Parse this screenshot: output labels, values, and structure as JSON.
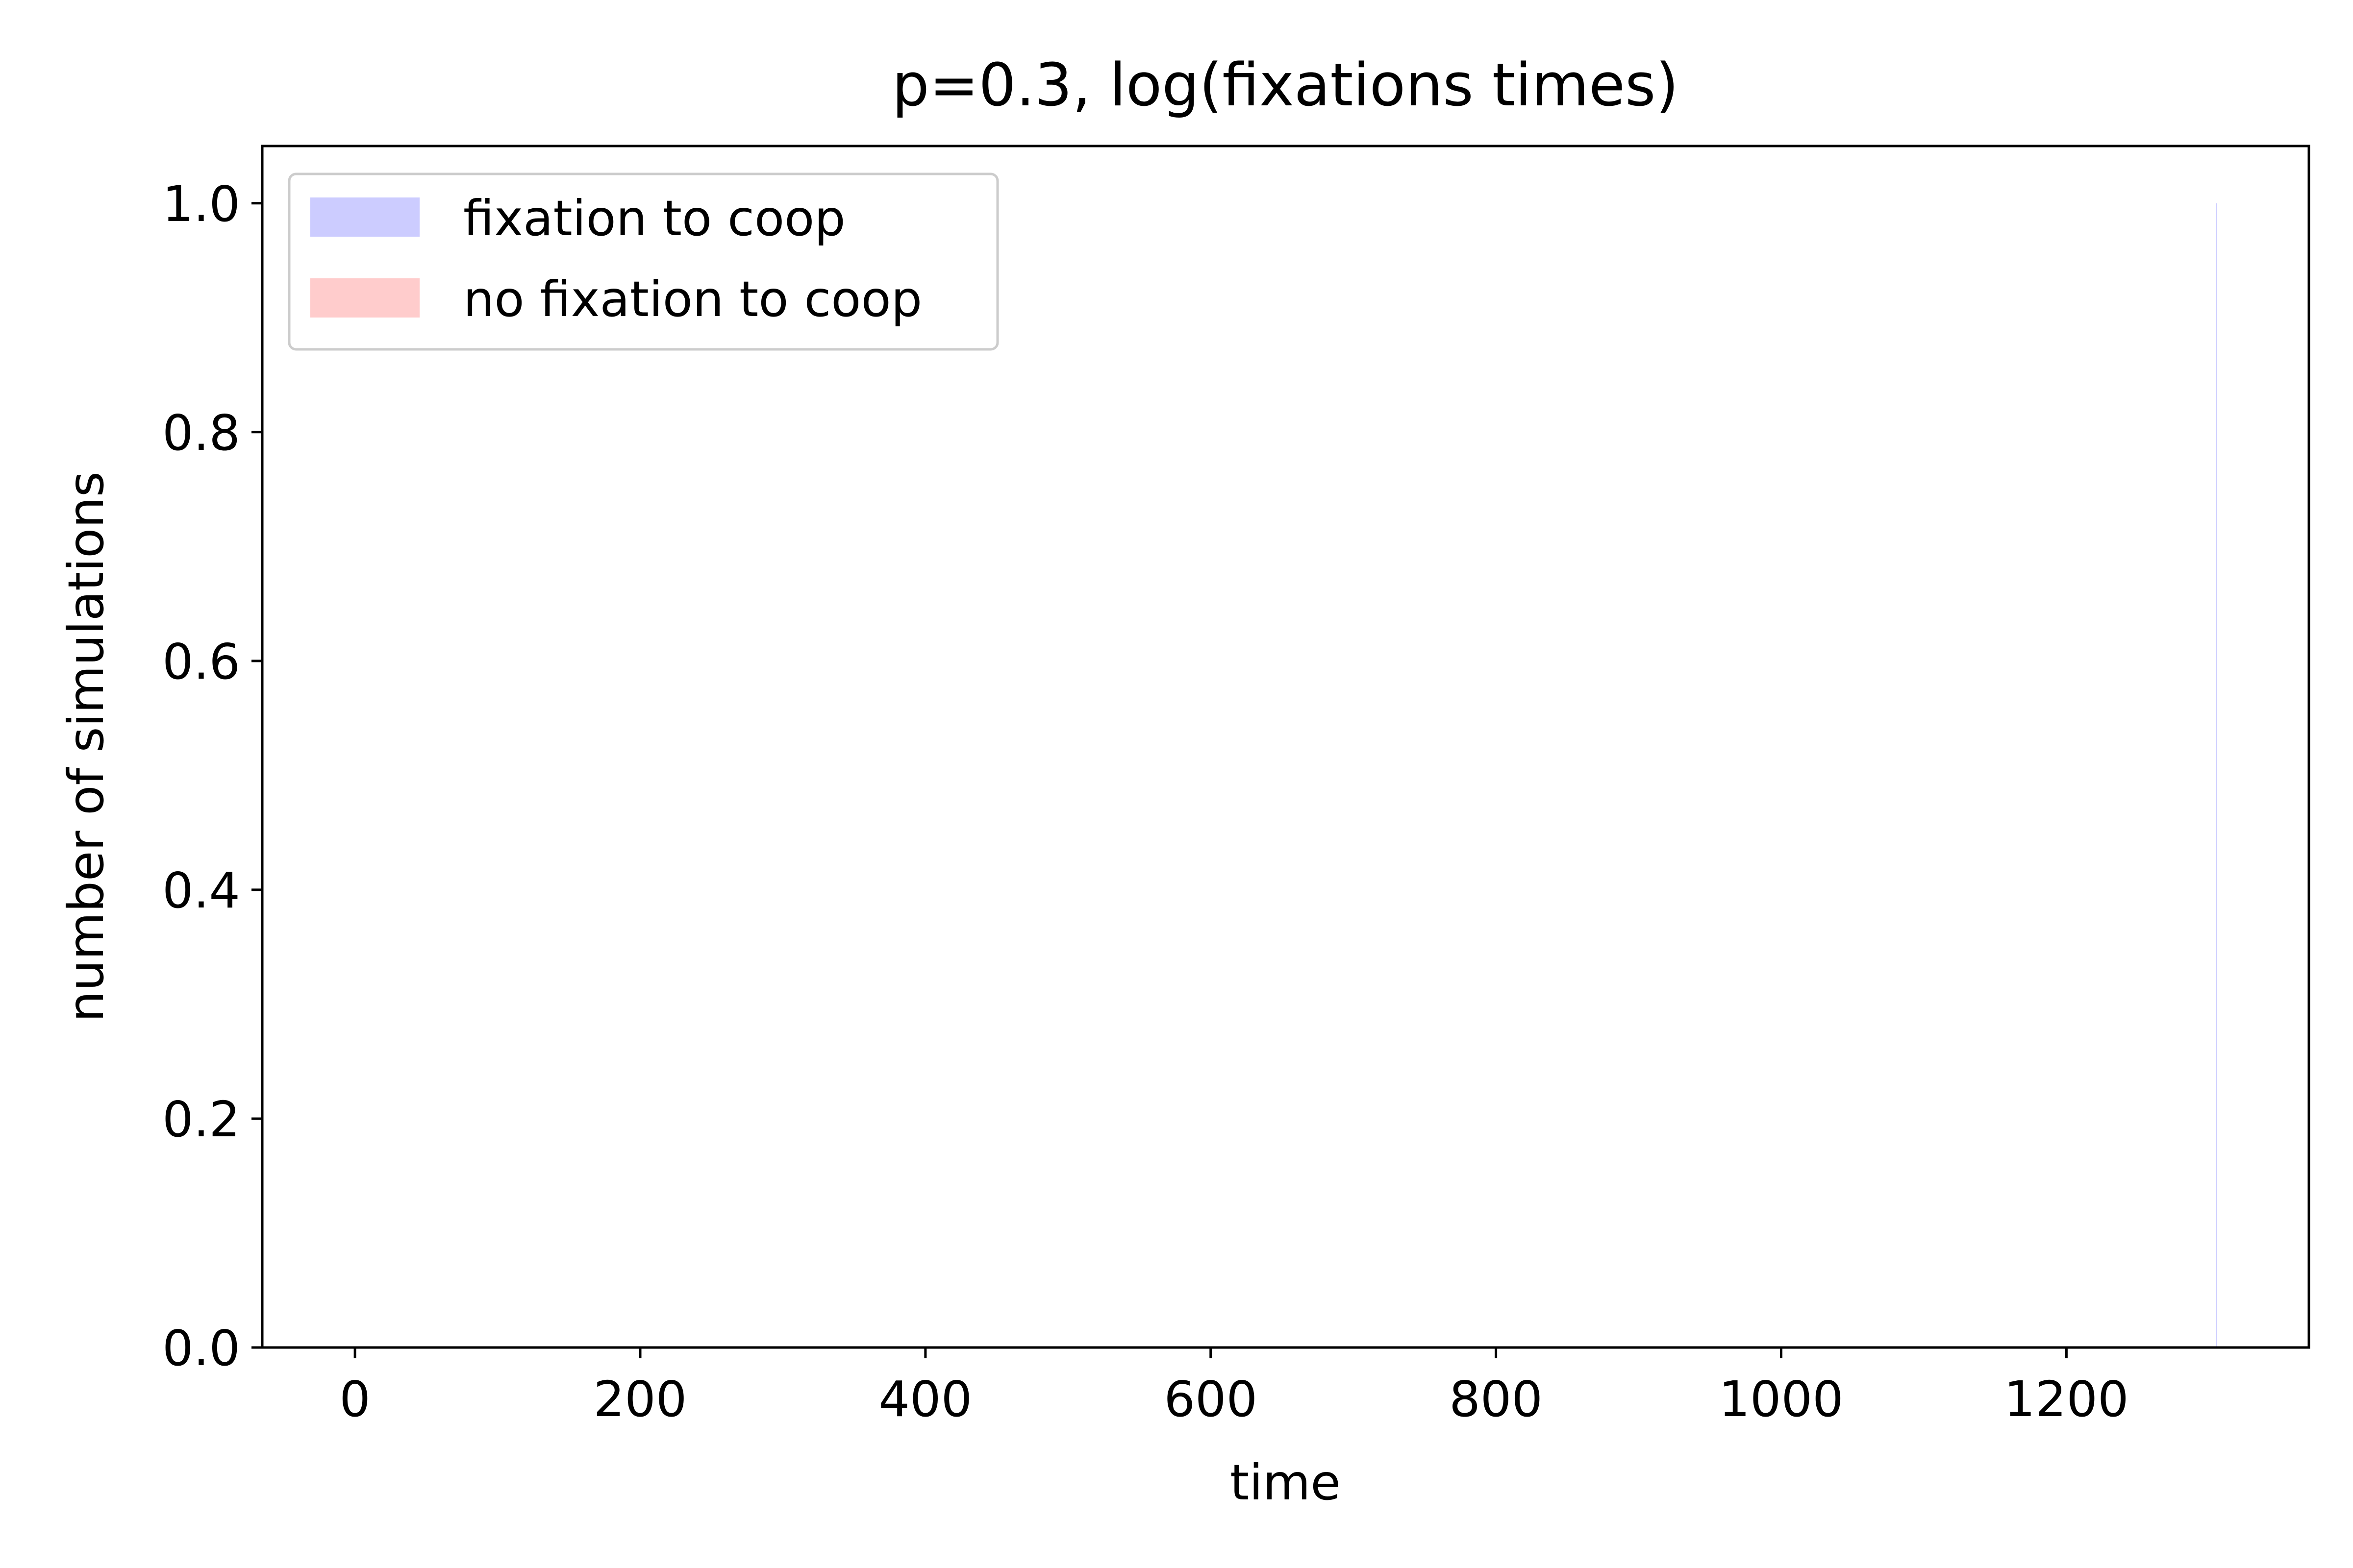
{
  "chart_data": {
    "type": "bar",
    "title": "p=0.3, log(fixations times)",
    "xlabel": "time",
    "ylabel": "number of simulations",
    "xlim": [
      -65,
      1370
    ],
    "ylim": [
      0,
      1.05
    ],
    "xticks": [
      0,
      200,
      400,
      600,
      800,
      1000,
      1200
    ],
    "xtick_labels": [
      "0",
      "200",
      "400",
      "600",
      "800",
      "1000",
      "1200"
    ],
    "yticks": [
      0,
      0.2,
      0.4,
      0.6,
      0.8,
      1.0
    ],
    "ytick_labels": [
      "0.0",
      "0.2",
      "0.4",
      "0.6",
      "0.8",
      "1.0"
    ],
    "grid": false,
    "legend_position": "top-left",
    "series": [
      {
        "name": "fixation to coop",
        "color": "#ccccff",
        "bars": [
          {
            "x": 1305,
            "height": 1.0,
            "width": 0.6
          }
        ]
      },
      {
        "name": "no fixation to coop",
        "color": "#ffcccc",
        "bars": []
      }
    ]
  }
}
